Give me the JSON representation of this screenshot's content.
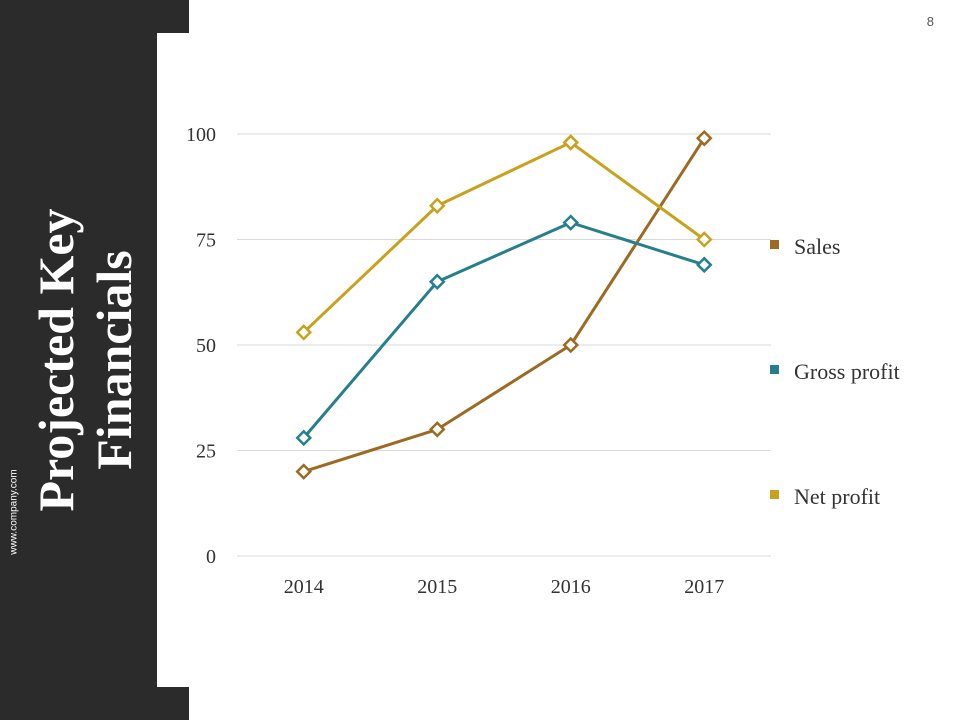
{
  "slide": {
    "title_line1": "Projected Key",
    "title_line2": "Financials",
    "website": "www.company.com",
    "page_number": "8"
  },
  "chart_data": {
    "type": "line",
    "categories": [
      "2014",
      "2015",
      "2016",
      "2017"
    ],
    "series": [
      {
        "name": "Sales",
        "values": [
          20,
          30,
          50,
          99
        ],
        "color": "#9c6a22"
      },
      {
        "name": "Gross profit",
        "values": [
          28,
          65,
          79,
          69
        ],
        "color": "#267f8c"
      },
      {
        "name": "Net profit",
        "values": [
          53,
          83,
          98,
          75
        ],
        "color": "#c8a21c"
      }
    ],
    "yticks": [
      "0",
      "25",
      "50",
      "75",
      "100"
    ],
    "ylim": [
      0,
      100
    ],
    "grid": true,
    "legend_position": "right",
    "marker": "diamond"
  }
}
